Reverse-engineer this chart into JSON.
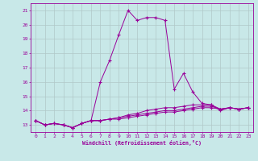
{
  "xlabel": "Windchill (Refroidissement éolien,°C)",
  "ylabel": "",
  "bg_color": "#c8e8e8",
  "line_color": "#990099",
  "grid_color": "#b0c8c8",
  "xlim": [
    -0.5,
    23.5
  ],
  "ylim": [
    12.5,
    21.5
  ],
  "xticks": [
    0,
    1,
    2,
    3,
    4,
    5,
    6,
    7,
    8,
    9,
    10,
    11,
    12,
    13,
    14,
    15,
    16,
    17,
    18,
    19,
    20,
    21,
    22,
    23
  ],
  "yticks": [
    13,
    14,
    15,
    16,
    17,
    18,
    19,
    20,
    21
  ],
  "lines": [
    {
      "x": [
        0,
        1,
        2,
        3,
        4,
        5,
        6,
        7,
        8,
        9,
        10,
        11,
        12,
        13,
        14,
        15,
        16,
        17,
        18,
        19,
        20,
        21,
        22,
        23
      ],
      "y": [
        13.3,
        13.0,
        13.1,
        13.0,
        12.8,
        13.1,
        13.3,
        16.0,
        17.5,
        19.3,
        21.0,
        20.3,
        20.5,
        20.5,
        20.3,
        15.5,
        16.6,
        15.3,
        14.5,
        14.4,
        14.0,
        14.2,
        14.1,
        14.2
      ]
    },
    {
      "x": [
        0,
        1,
        2,
        3,
        4,
        5,
        6,
        7,
        8,
        9,
        10,
        11,
        12,
        13,
        14,
        15,
        16,
        17,
        18,
        19,
        20,
        21,
        22,
        23
      ],
      "y": [
        13.3,
        13.0,
        13.1,
        13.0,
        12.8,
        13.1,
        13.3,
        13.3,
        13.4,
        13.5,
        13.7,
        13.8,
        14.0,
        14.1,
        14.2,
        14.2,
        14.3,
        14.4,
        14.4,
        14.4,
        14.1,
        14.2,
        14.1,
        14.2
      ]
    },
    {
      "x": [
        0,
        1,
        2,
        3,
        4,
        5,
        6,
        7,
        8,
        9,
        10,
        11,
        12,
        13,
        14,
        15,
        16,
        17,
        18,
        19,
        20,
        21,
        22,
        23
      ],
      "y": [
        13.3,
        13.0,
        13.1,
        13.0,
        12.8,
        13.1,
        13.3,
        13.3,
        13.4,
        13.5,
        13.6,
        13.7,
        13.8,
        13.9,
        14.0,
        14.0,
        14.1,
        14.2,
        14.3,
        14.3,
        14.1,
        14.2,
        14.1,
        14.2
      ]
    },
    {
      "x": [
        0,
        1,
        2,
        3,
        4,
        5,
        6,
        7,
        8,
        9,
        10,
        11,
        12,
        13,
        14,
        15,
        16,
        17,
        18,
        19,
        20,
        21,
        22,
        23
      ],
      "y": [
        13.3,
        13.0,
        13.1,
        13.0,
        12.8,
        13.1,
        13.3,
        13.3,
        13.4,
        13.4,
        13.5,
        13.6,
        13.7,
        13.8,
        13.9,
        13.9,
        14.0,
        14.1,
        14.2,
        14.2,
        14.1,
        14.2,
        14.1,
        14.2
      ]
    }
  ]
}
